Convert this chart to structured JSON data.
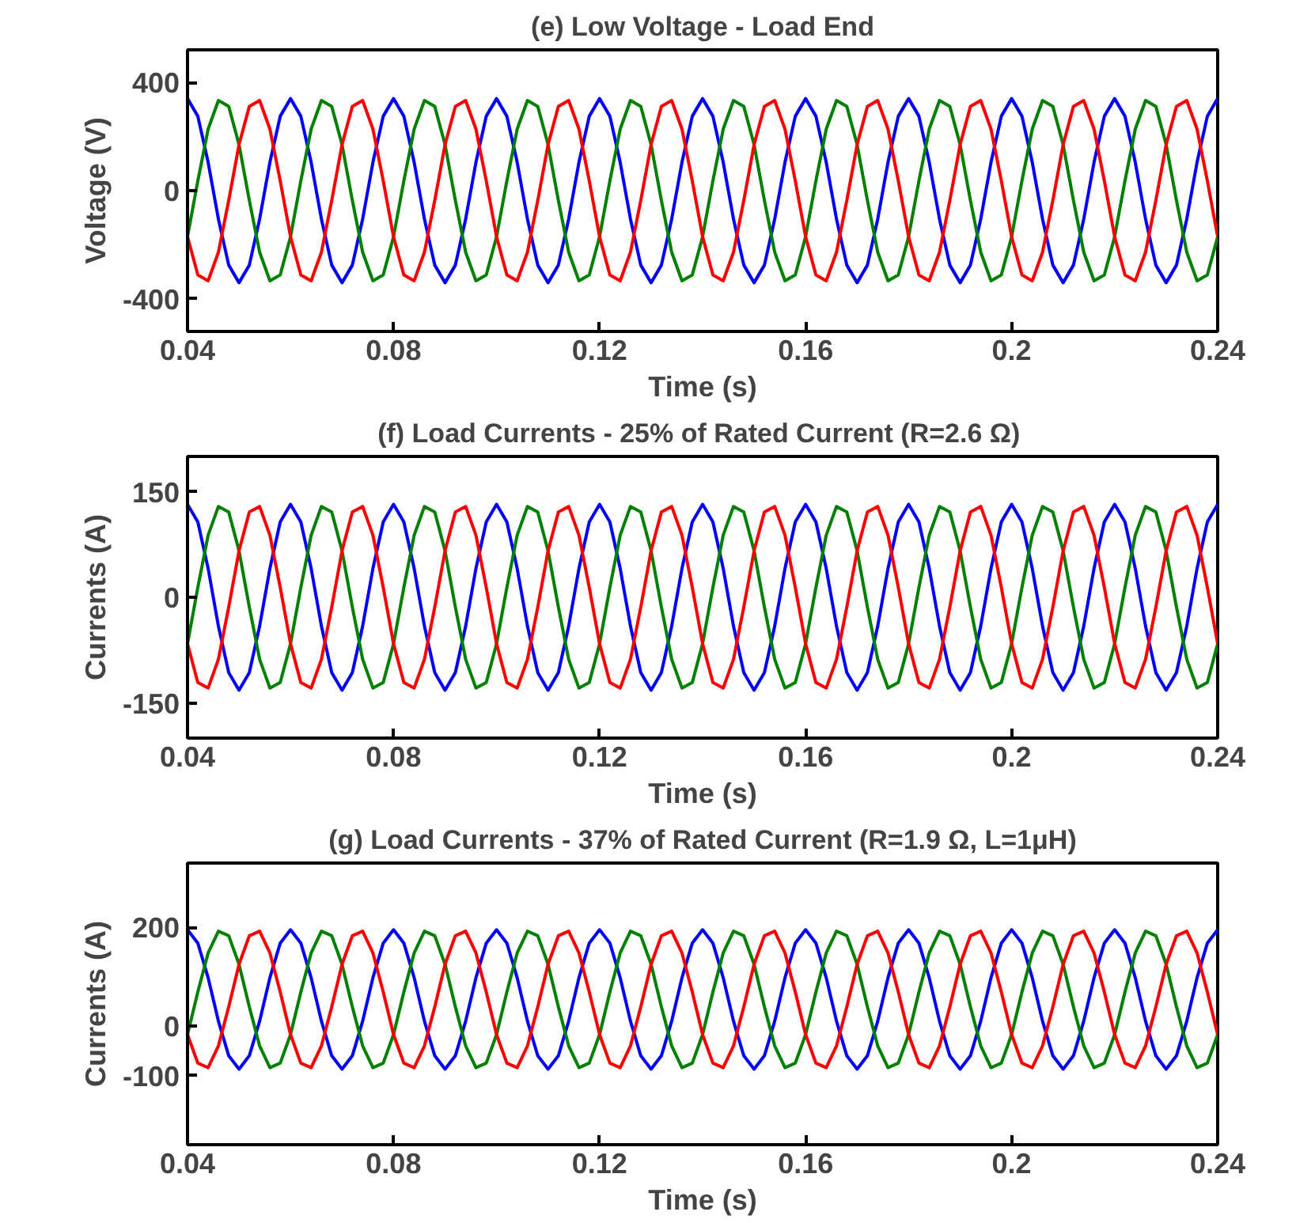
{
  "chart_data": [
    {
      "type": "line",
      "title": "(e) Low Voltage - Load End",
      "xlabel": "Time (s)",
      "ylabel": "Voltage (V)",
      "xlim": [
        0.04,
        0.24
      ],
      "xticks": [
        0.04,
        0.08,
        0.12,
        0.16,
        0.2,
        0.24
      ],
      "ylim": [
        -520,
        520
      ],
      "yticks": [
        -400,
        0,
        400
      ],
      "x": [
        0.04,
        0.042,
        0.044,
        0.046,
        0.048,
        0.05,
        0.052,
        0.054,
        0.056,
        0.058,
        0.06,
        0.062,
        0.064,
        0.066,
        0.068,
        0.07,
        0.072,
        0.074,
        0.076,
        0.078,
        0.08,
        0.082,
        0.084,
        0.086,
        0.088,
        0.09,
        0.092,
        0.094,
        0.096,
        0.098,
        0.1,
        0.102,
        0.104,
        0.106,
        0.108,
        0.11,
        0.112,
        0.114,
        0.116,
        0.118,
        0.12,
        0.122,
        0.124,
        0.126,
        0.128,
        0.13,
        0.132,
        0.134,
        0.136,
        0.138,
        0.14,
        0.142,
        0.144,
        0.146,
        0.148,
        0.15,
        0.152,
        0.154,
        0.156,
        0.158,
        0.16,
        0.162,
        0.164,
        0.166,
        0.168,
        0.17,
        0.172,
        0.174,
        0.176,
        0.178,
        0.18,
        0.182,
        0.184,
        0.186,
        0.188,
        0.19,
        0.192,
        0.194,
        0.196,
        0.198,
        0.2,
        0.202,
        0.204,
        0.206,
        0.208,
        0.21,
        0.212,
        0.214,
        0.216,
        0.218,
        0.22,
        0.222,
        0.224,
        0.226,
        0.228,
        0.23,
        0.232,
        0.234,
        0.236,
        0.238,
        0.24
      ],
      "series": [
        {
          "color": "#0000ff",
          "values": [
            340,
            275,
            105,
            -105,
            -275,
            -340,
            -275,
            -105,
            105,
            275,
            340,
            275,
            105,
            -105,
            -275,
            -340,
            -275,
            -105,
            105,
            275,
            340,
            275,
            105,
            -105,
            -275,
            -340,
            -275,
            -105,
            105,
            275,
            340,
            275,
            105,
            -105,
            -275,
            -340,
            -275,
            -105,
            105,
            275,
            340,
            275,
            105,
            -105,
            -275,
            -340,
            -275,
            -105,
            105,
            275,
            340,
            275,
            105,
            -105,
            -275,
            -340,
            -275,
            -105,
            105,
            275,
            340,
            275,
            105,
            -105,
            -275,
            -340,
            -275,
            -105,
            105,
            275,
            340,
            275,
            105,
            -105,
            -275,
            -340,
            -275,
            -105,
            105,
            275,
            340,
            275,
            105,
            -105,
            -275,
            -340,
            -275,
            -105,
            105,
            275,
            340,
            275,
            105,
            -105,
            -275,
            -340,
            -275,
            -105,
            105,
            275,
            340
          ]
        },
        {
          "color": "#008000",
          "values": [
            -170,
            36,
            227,
            333,
            311,
            170,
            -36,
            -227,
            -333,
            -311,
            -170,
            36,
            227,
            333,
            311,
            170,
            -36,
            -227,
            -333,
            -311,
            -170,
            36,
            227,
            333,
            311,
            170,
            -36,
            -227,
            -333,
            -311,
            -170,
            36,
            227,
            333,
            311,
            170,
            -36,
            -227,
            -333,
            -311,
            -170,
            36,
            227,
            333,
            311,
            170,
            -36,
            -227,
            -333,
            -311,
            -170,
            36,
            227,
            333,
            311,
            170,
            -36,
            -227,
            -333,
            -311,
            -170,
            36,
            227,
            333,
            311,
            170,
            -36,
            -227,
            -333,
            -311,
            -170,
            36,
            227,
            333,
            311,
            170,
            -36,
            -227,
            -333,
            -311,
            -170,
            36,
            227,
            333,
            311,
            170,
            -36,
            -227,
            -333,
            -311,
            -170,
            36,
            227,
            333,
            311,
            170,
            -36,
            -227,
            -333,
            -311,
            -170
          ]
        },
        {
          "color": "#ff0000",
          "values": [
            -170,
            -311,
            -333,
            -227,
            -36,
            170,
            311,
            333,
            227,
            36,
            -170,
            -311,
            -333,
            -227,
            -36,
            170,
            311,
            333,
            227,
            36,
            -170,
            -311,
            -333,
            -227,
            -36,
            170,
            311,
            333,
            227,
            36,
            -170,
            -311,
            -333,
            -227,
            -36,
            170,
            311,
            333,
            227,
            36,
            -170,
            -311,
            -333,
            -227,
            -36,
            170,
            311,
            333,
            227,
            36,
            -170,
            -311,
            -333,
            -227,
            -36,
            170,
            311,
            333,
            227,
            36,
            -170,
            -311,
            -333,
            -227,
            -36,
            170,
            311,
            333,
            227,
            36,
            -170,
            -311,
            -333,
            -227,
            -36,
            170,
            311,
            333,
            227,
            36,
            -170,
            -311,
            -333,
            -227,
            -36,
            170,
            311,
            333,
            227,
            36,
            -170,
            -311,
            -333,
            -227,
            -36,
            170,
            311,
            333,
            227,
            36,
            -170
          ]
        }
      ]
    },
    {
      "type": "line",
      "title": "(f) Load Currents - 25% of Rated Current (R=2.6  Ω)",
      "xlabel": "Time (s)",
      "ylabel": "Currents (A)",
      "xlim": [
        0.04,
        0.24
      ],
      "xticks": [
        0.04,
        0.08,
        0.12,
        0.16,
        0.2,
        0.24
      ],
      "ylim": [
        -200,
        200
      ],
      "yticks": [
        -150,
        0,
        150
      ],
      "x": [
        0.04,
        0.042,
        0.044,
        0.046,
        0.048,
        0.05,
        0.052,
        0.054,
        0.056,
        0.058,
        0.06,
        0.062,
        0.064,
        0.066,
        0.068,
        0.07,
        0.072,
        0.074,
        0.076,
        0.078,
        0.08,
        0.082,
        0.084,
        0.086,
        0.088,
        0.09,
        0.092,
        0.094,
        0.096,
        0.098,
        0.1,
        0.102,
        0.104,
        0.106,
        0.108,
        0.11,
        0.112,
        0.114,
        0.116,
        0.118,
        0.12,
        0.122,
        0.124,
        0.126,
        0.128,
        0.13,
        0.132,
        0.134,
        0.136,
        0.138,
        0.14,
        0.142,
        0.144,
        0.146,
        0.148,
        0.15,
        0.152,
        0.154,
        0.156,
        0.158,
        0.16,
        0.162,
        0.164,
        0.166,
        0.168,
        0.17,
        0.172,
        0.174,
        0.176,
        0.178,
        0.18,
        0.182,
        0.184,
        0.186,
        0.188,
        0.19,
        0.192,
        0.194,
        0.196,
        0.198,
        0.2,
        0.202,
        0.204,
        0.206,
        0.208,
        0.21,
        0.212,
        0.214,
        0.216,
        0.218,
        0.22,
        0.222,
        0.224,
        0.226,
        0.228,
        0.23,
        0.232,
        0.234,
        0.236,
        0.238,
        0.24
      ],
      "series": [
        {
          "color": "#0000ff",
          "values": [
            132,
            107,
            41,
            -41,
            -107,
            -132,
            -107,
            -41,
            41,
            107,
            132,
            107,
            41,
            -41,
            -107,
            -132,
            -107,
            -41,
            41,
            107,
            132,
            107,
            41,
            -41,
            -107,
            -132,
            -107,
            -41,
            41,
            107,
            132,
            107,
            41,
            -41,
            -107,
            -132,
            -107,
            -41,
            41,
            107,
            132,
            107,
            41,
            -41,
            -107,
            -132,
            -107,
            -41,
            41,
            107,
            132,
            107,
            41,
            -41,
            -107,
            -132,
            -107,
            -41,
            41,
            107,
            132,
            107,
            41,
            -41,
            -107,
            -132,
            -107,
            -41,
            41,
            107,
            132,
            107,
            41,
            -41,
            -107,
            -132,
            -107,
            -41,
            41,
            107,
            132,
            107,
            41,
            -41,
            -107,
            -132,
            -107,
            -41,
            41,
            107,
            132,
            107,
            41,
            -41,
            -107,
            -132,
            -107,
            -41,
            41,
            107,
            132
          ]
        },
        {
          "color": "#008000",
          "values": [
            -66,
            14,
            88,
            129,
            121,
            66,
            -14,
            -88,
            -129,
            -121,
            -66,
            14,
            88,
            129,
            121,
            66,
            -14,
            -88,
            -129,
            -121,
            -66,
            14,
            88,
            129,
            121,
            66,
            -14,
            -88,
            -129,
            -121,
            -66,
            14,
            88,
            129,
            121,
            66,
            -14,
            -88,
            -129,
            -121,
            -66,
            14,
            88,
            129,
            121,
            66,
            -14,
            -88,
            -129,
            -121,
            -66,
            14,
            88,
            129,
            121,
            66,
            -14,
            -88,
            -129,
            -121,
            -66,
            14,
            88,
            129,
            121,
            66,
            -14,
            -88,
            -129,
            -121,
            -66,
            14,
            88,
            129,
            121,
            66,
            -14,
            -88,
            -129,
            -121,
            -66,
            14,
            88,
            129,
            121,
            66,
            -14,
            -88,
            -129,
            -121,
            -66,
            14,
            88,
            129,
            121,
            66,
            -14,
            -88,
            -129,
            -121,
            -66
          ]
        },
        {
          "color": "#ff0000",
          "values": [
            -66,
            -121,
            -129,
            -88,
            -14,
            66,
            121,
            129,
            88,
            14,
            -66,
            -121,
            -129,
            -88,
            -14,
            66,
            121,
            129,
            88,
            14,
            -66,
            -121,
            -129,
            -88,
            -14,
            66,
            121,
            129,
            88,
            14,
            -66,
            -121,
            -129,
            -88,
            -14,
            66,
            121,
            129,
            88,
            14,
            -66,
            -121,
            -129,
            -88,
            -14,
            66,
            121,
            129,
            88,
            14,
            -66,
            -121,
            -129,
            -88,
            -14,
            66,
            121,
            129,
            88,
            14,
            -66,
            -121,
            -129,
            -88,
            -14,
            66,
            121,
            129,
            88,
            14,
            -66,
            -121,
            -129,
            -88,
            -14,
            66,
            121,
            129,
            88,
            14,
            -66,
            -121,
            -129,
            -88,
            -14,
            66,
            121,
            129,
            88,
            14,
            -66,
            -121,
            -129,
            -88,
            -14,
            66,
            121,
            129,
            88,
            14,
            -66
          ]
        }
      ]
    },
    {
      "type": "line",
      "title": "(g) Load Currents - 37% of Rated Current (R=1.9 Ω, L=1μH)",
      "xlabel": "Time (s)",
      "ylabel": "Currents (A)",
      "xlim": [
        0.04,
        0.24
      ],
      "xticks": [
        0.04,
        0.08,
        0.12,
        0.16,
        0.2,
        0.24
      ],
      "ylim": [
        -240,
        330
      ],
      "yticks": [
        -100,
        0,
        200
      ],
      "x": [
        0.04,
        0.042,
        0.044,
        0.046,
        0.048,
        0.05,
        0.052,
        0.054,
        0.056,
        0.058,
        0.06,
        0.062,
        0.064,
        0.066,
        0.068,
        0.07,
        0.072,
        0.074,
        0.076,
        0.078,
        0.08,
        0.082,
        0.084,
        0.086,
        0.088,
        0.09,
        0.092,
        0.094,
        0.096,
        0.098,
        0.1,
        0.102,
        0.104,
        0.106,
        0.108,
        0.11,
        0.112,
        0.114,
        0.116,
        0.118,
        0.12,
        0.122,
        0.124,
        0.126,
        0.128,
        0.13,
        0.132,
        0.134,
        0.136,
        0.138,
        0.14,
        0.142,
        0.144,
        0.146,
        0.148,
        0.15,
        0.152,
        0.154,
        0.156,
        0.158,
        0.16,
        0.162,
        0.164,
        0.166,
        0.168,
        0.17,
        0.172,
        0.174,
        0.176,
        0.178,
        0.18,
        0.182,
        0.184,
        0.186,
        0.188,
        0.19,
        0.192,
        0.194,
        0.196,
        0.198,
        0.2,
        0.202,
        0.204,
        0.206,
        0.208,
        0.21,
        0.212,
        0.214,
        0.216,
        0.218,
        0.22,
        0.222,
        0.224,
        0.226,
        0.228,
        0.23,
        0.232,
        0.234,
        0.236,
        0.238,
        0.24
      ],
      "series": [
        {
          "color": "#0000ff",
          "values": [
            195,
            168,
            98,
            10,
            -60,
            -87,
            -60,
            10,
            98,
            168,
            195,
            168,
            98,
            10,
            -60,
            -87,
            -60,
            10,
            98,
            168,
            195,
            168,
            98,
            10,
            -60,
            -87,
            -60,
            10,
            98,
            168,
            195,
            168,
            98,
            10,
            -60,
            -87,
            -60,
            10,
            98,
            168,
            195,
            168,
            98,
            10,
            -60,
            -87,
            -60,
            10,
            98,
            168,
            195,
            168,
            98,
            10,
            -60,
            -87,
            -60,
            10,
            98,
            168,
            195,
            168,
            98,
            10,
            -60,
            -87,
            -60,
            10,
            98,
            168,
            195,
            168,
            98,
            10,
            -60,
            -87,
            -60,
            10,
            98,
            168,
            195,
            168,
            98,
            10,
            -60,
            -87,
            -60,
            10,
            98,
            168,
            195,
            168,
            98,
            10,
            -60,
            -87,
            -60,
            10,
            98,
            168,
            195
          ]
        },
        {
          "color": "#008000",
          "values": [
            -17,
            69,
            148,
            192,
            183,
            125,
            39,
            -40,
            -84,
            -75,
            -17,
            69,
            148,
            192,
            183,
            125,
            39,
            -40,
            -84,
            -75,
            -17,
            69,
            148,
            192,
            183,
            125,
            39,
            -40,
            -84,
            -75,
            -17,
            69,
            148,
            192,
            183,
            125,
            39,
            -40,
            -84,
            -75,
            -17,
            69,
            148,
            192,
            183,
            125,
            39,
            -40,
            -84,
            -75,
            -17,
            69,
            148,
            192,
            183,
            125,
            39,
            -40,
            -84,
            -75,
            -17,
            69,
            148,
            192,
            183,
            125,
            39,
            -40,
            -84,
            -75,
            -17,
            69,
            148,
            192,
            183,
            125,
            39,
            -40,
            -84,
            -75,
            -17,
            69,
            148,
            192,
            183,
            125,
            39,
            -40,
            -84,
            -75,
            -17,
            69,
            148,
            192,
            183,
            125,
            39,
            -40,
            -84,
            -75,
            -17
          ]
        },
        {
          "color": "#ff0000",
          "values": [
            -17,
            -75,
            -84,
            -40,
            39,
            125,
            183,
            192,
            148,
            69,
            -17,
            -75,
            -84,
            -40,
            39,
            125,
            183,
            192,
            148,
            69,
            -17,
            -75,
            -84,
            -40,
            39,
            125,
            183,
            192,
            148,
            69,
            -17,
            -75,
            -84,
            -40,
            39,
            125,
            183,
            192,
            148,
            69,
            -17,
            -75,
            -84,
            -40,
            39,
            125,
            183,
            192,
            148,
            69,
            -17,
            -75,
            -84,
            -40,
            39,
            125,
            183,
            192,
            148,
            69,
            -17,
            -75,
            -84,
            -40,
            39,
            125,
            183,
            192,
            148,
            69,
            -17,
            -75,
            -84,
            -40,
            39,
            125,
            183,
            192,
            148,
            69,
            -17,
            -75,
            -84,
            -40,
            39,
            125,
            183,
            192,
            148,
            69,
            -17,
            -75,
            -84,
            -40,
            39,
            125,
            183,
            192,
            148,
            69,
            -17
          ]
        }
      ]
    }
  ]
}
